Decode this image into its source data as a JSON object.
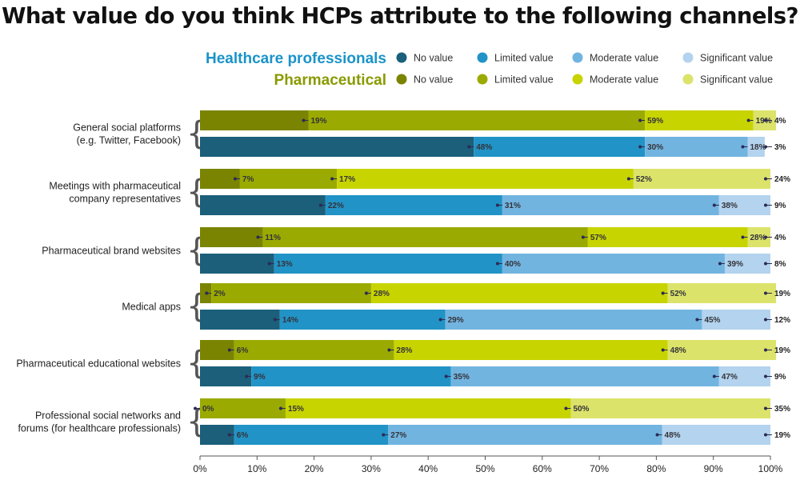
{
  "chart_data": {
    "type": "bar",
    "orientation": "horizontal",
    "stacked": true,
    "title": "What value do you think HCPs attribute to the following channels?",
    "categories": [
      "General social platforms\n(e.g. Twitter, Facebook)",
      "Meetings with pharmaceutical\ncompany representatives",
      "Pharmaceutical brand websites",
      "Medical apps",
      "Pharmaceutical educational websites",
      "Professional social networks and\nforums (for healthcare professionals)"
    ],
    "value_levels": [
      "No value",
      "Limited value",
      "Moderate value",
      "Significant value"
    ],
    "groups": [
      {
        "name": "Pharmaceutical",
        "color": "#8a9a00",
        "segment_colors": [
          "#7a8400",
          "#9aaa00",
          "#c8d400",
          "#dce36a"
        ],
        "values": [
          [
            19,
            59,
            19,
            4
          ],
          [
            7,
            17,
            52,
            24
          ],
          [
            11,
            57,
            28,
            4
          ],
          [
            2,
            28,
            52,
            19
          ],
          [
            6,
            28,
            48,
            19
          ],
          [
            0,
            15,
            50,
            35
          ]
        ]
      },
      {
        "name": "Healthcare professionals",
        "color": "#1a93c8",
        "segment_colors": [
          "#1b5f7a",
          "#2293c6",
          "#72b4e0",
          "#b3d3ee"
        ],
        "values": [
          [
            48,
            30,
            18,
            3
          ],
          [
            22,
            31,
            38,
            9
          ],
          [
            13,
            40,
            39,
            8
          ],
          [
            14,
            29,
            45,
            12
          ],
          [
            9,
            35,
            47,
            9
          ],
          [
            6,
            27,
            48,
            19
          ]
        ]
      }
    ],
    "xlim": [
      0,
      100
    ],
    "x_ticks": [
      "0%",
      "10%",
      "20%",
      "30%",
      "40%",
      "50%",
      "60%",
      "70%",
      "80%",
      "90%",
      "100%"
    ],
    "legend_position": "top-right",
    "grid": false
  }
}
